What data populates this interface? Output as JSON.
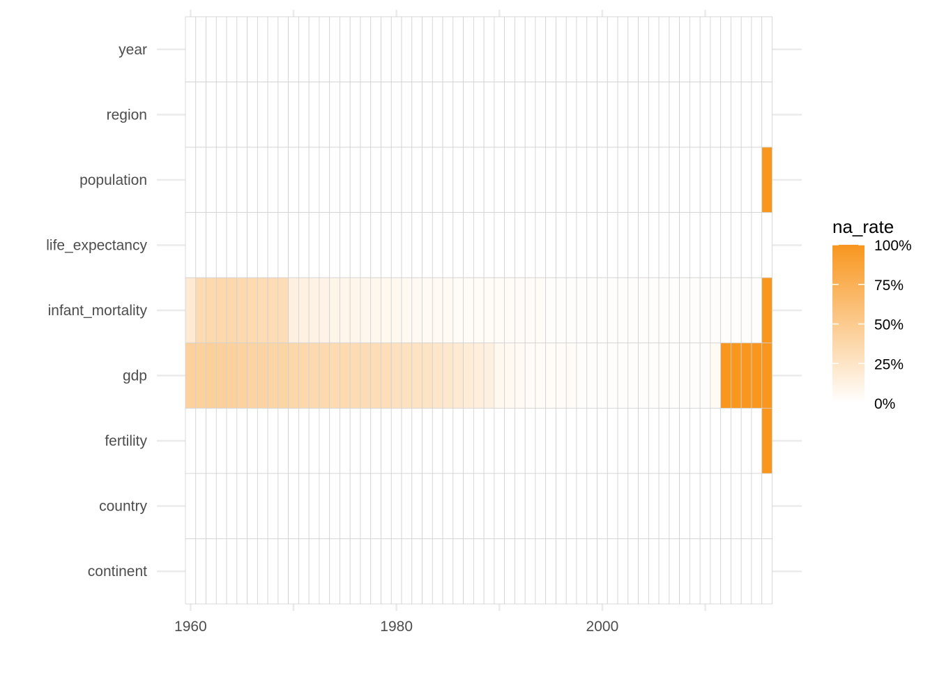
{
  "chart_data": {
    "type": "heatmap",
    "x_start": 1960,
    "x_end": 2016,
    "x_ticks": [
      1960,
      1980,
      2000
    ],
    "variables": [
      "year",
      "region",
      "population",
      "life_expectancy",
      "infant_mortality",
      "gdp",
      "fertility",
      "country",
      "continent"
    ],
    "missing_rates": {
      "population": {
        "2016": 1.0
      },
      "infant_mortality": {
        "1960": 0.2,
        "1961": 0.35,
        "1962": 0.36,
        "1963": 0.37,
        "1964": 0.37,
        "1965": 0.36,
        "1966": 0.35,
        "1967": 0.34,
        "1968": 0.33,
        "1969": 0.32,
        "1970": 0.14,
        "1971": 0.13,
        "1972": 0.12,
        "1973": 0.11,
        "1974": 0.1,
        "1975": 0.09,
        "1976": 0.09,
        "1977": 0.08,
        "1978": 0.08,
        "1979": 0.07,
        "1980": 0.07,
        "1981": 0.06,
        "1982": 0.06,
        "1983": 0.05,
        "1984": 0.05,
        "1985": 0.05,
        "1986": 0.04,
        "1987": 0.04,
        "1988": 0.04,
        "1989": 0.04,
        "1990": 0.03,
        "1991": 0.03,
        "1992": 0.03,
        "1993": 0.03,
        "1994": 0.03,
        "1995": 0.02,
        "1996": 0.02,
        "1997": 0.02,
        "1998": 0.02,
        "1999": 0.02,
        "2000": 0.02,
        "2001": 0.02,
        "2002": 0.02,
        "2003": 0.02,
        "2004": 0.02,
        "2005": 0.02,
        "2006": 0.02,
        "2007": 0.02,
        "2008": 0.02,
        "2009": 0.02,
        "2010": 0.02,
        "2011": 0.02,
        "2012": 0.02,
        "2013": 0.02,
        "2014": 0.02,
        "2015": 0.02,
        "2016": 1.0
      },
      "gdp": {
        "1960": 0.44,
        "1961": 0.44,
        "1962": 0.45,
        "1963": 0.45,
        "1964": 0.44,
        "1965": 0.43,
        "1966": 0.42,
        "1967": 0.41,
        "1968": 0.4,
        "1969": 0.4,
        "1970": 0.38,
        "1971": 0.37,
        "1972": 0.36,
        "1973": 0.36,
        "1974": 0.35,
        "1975": 0.35,
        "1976": 0.34,
        "1977": 0.33,
        "1978": 0.32,
        "1979": 0.31,
        "1980": 0.29,
        "1981": 0.28,
        "1982": 0.27,
        "1983": 0.26,
        "1984": 0.24,
        "1985": 0.22,
        "1986": 0.2,
        "1987": 0.18,
        "1988": 0.16,
        "1989": 0.14,
        "1990": 0.07,
        "1991": 0.06,
        "1992": 0.05,
        "1993": 0.04,
        "1994": 0.04,
        "1995": 0.03,
        "1996": 0.03,
        "1997": 0.03,
        "1998": 0.02,
        "1999": 0.02,
        "2000": 0.02,
        "2001": 0.02,
        "2002": 0.02,
        "2003": 0.02,
        "2004": 0.02,
        "2005": 0.02,
        "2006": 0.02,
        "2007": 0.02,
        "2008": 0.02,
        "2009": 0.02,
        "2010": 0.02,
        "2011": 0.05,
        "2012": 1.0,
        "2013": 1.0,
        "2014": 1.0,
        "2015": 1.0,
        "2016": 1.0
      },
      "fertility": {
        "2016": 1.0
      }
    },
    "legend": {
      "title": "na_rate",
      "labels": [
        "100%",
        "75%",
        "50%",
        "25%",
        "0%"
      ],
      "values": [
        1.0,
        0.75,
        0.5,
        0.25,
        0.0
      ],
      "position": "right"
    },
    "grid": true,
    "colors": {
      "low": "#ffffff",
      "high": "#f8961e",
      "cell_border": "#d0d0d0",
      "grid": "#ebebeb"
    }
  }
}
